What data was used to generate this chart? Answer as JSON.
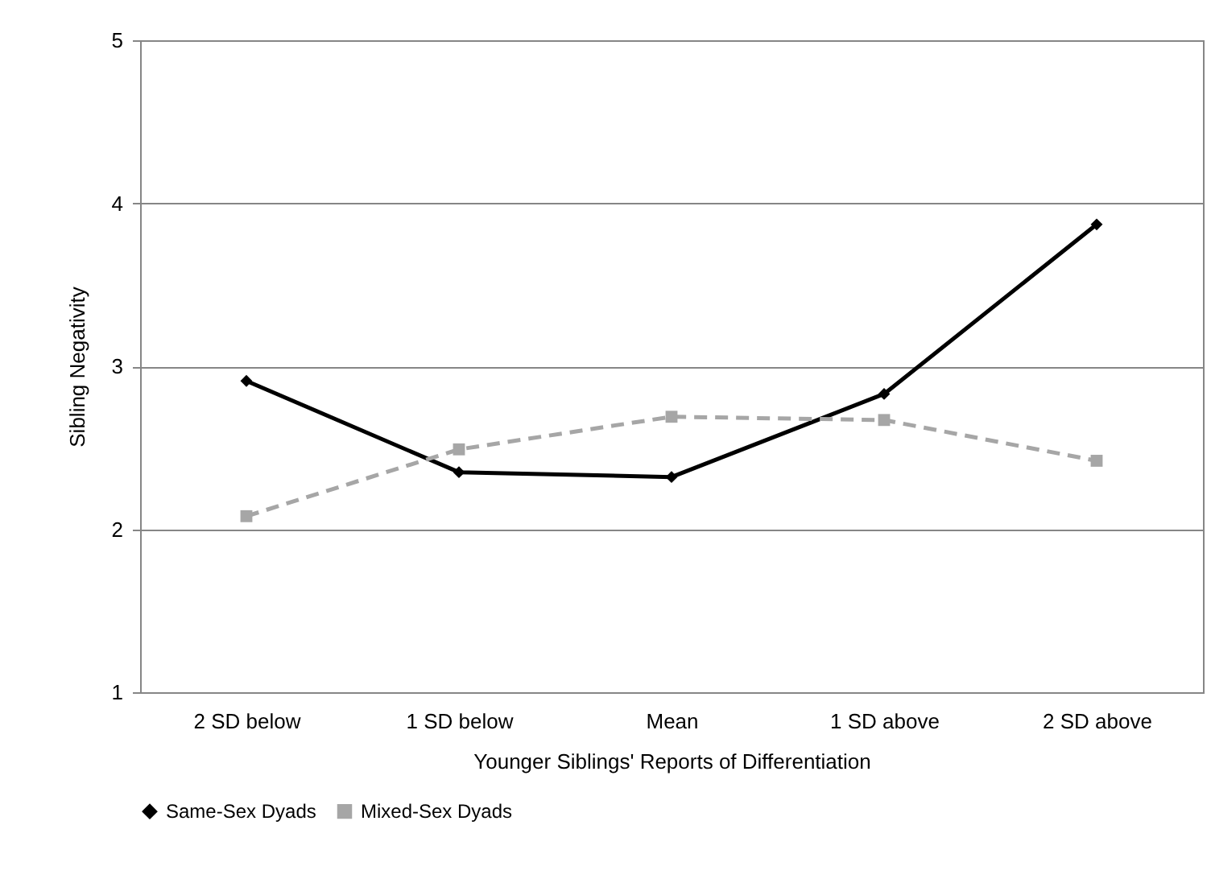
{
  "chart_data": {
    "type": "line",
    "xlabel": "Younger Siblings' Reports of Differentiation",
    "ylabel": "Sibling Negativity",
    "categories": [
      "2 SD below",
      "1 SD below",
      "Mean",
      "1 SD above",
      "2 SD above"
    ],
    "series": [
      {
        "name": "Same-Sex Dyads",
        "color": "#000000",
        "marker": "diamond",
        "line_style": "solid",
        "values": [
          2.91,
          2.35,
          2.32,
          2.83,
          3.87
        ]
      },
      {
        "name": "Mixed-Sex Dyads",
        "color": "#a6a6a6",
        "marker": "square",
        "line_style": "dashed",
        "values": [
          2.08,
          2.49,
          2.69,
          2.67,
          2.42
        ]
      }
    ],
    "ylim": [
      1,
      5
    ],
    "yticks": [
      1,
      2,
      3,
      4,
      5
    ],
    "grid": "y",
    "legend": "bottom"
  }
}
